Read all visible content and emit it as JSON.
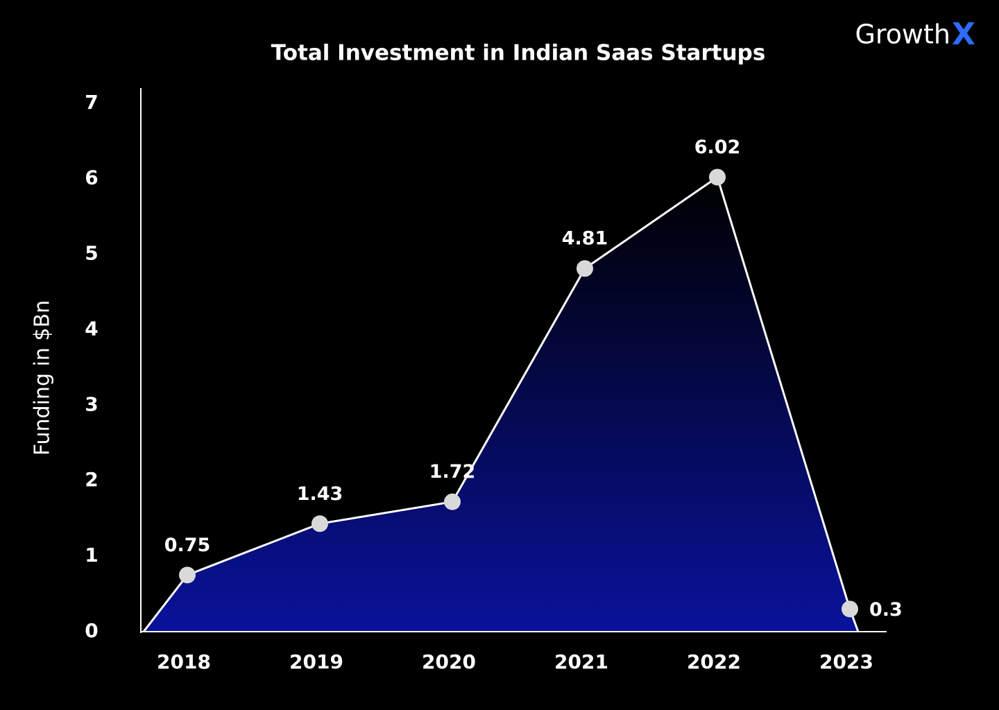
{
  "brand": {
    "name": "Growth",
    "mark": "X"
  },
  "chart_data": {
    "type": "area",
    "title": "Total Investment in Indian Saas Startups",
    "y_label": "Funding in $Bn",
    "categories": [
      "2018",
      "2019",
      "2020",
      "2021",
      "2022",
      "2023"
    ],
    "values": [
      0.75,
      1.43,
      1.72,
      4.81,
      6.02,
      0.3
    ],
    "color": "#0a129c",
    "line_color": "#ffffff",
    "marker_color": "#d9d9d9",
    "ylim": [
      0,
      7.2
    ],
    "yticks": [
      0,
      1,
      2,
      3,
      4,
      5,
      6,
      7
    ],
    "grid": false
  }
}
